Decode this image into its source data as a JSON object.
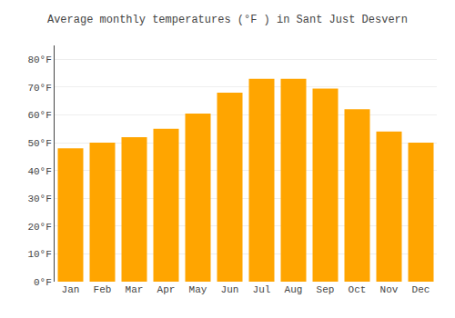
{
  "chart_data": {
    "type": "bar",
    "title": "Average monthly temperatures (°F ) in Sant Just Desvern",
    "categories": [
      "Jan",
      "Feb",
      "Mar",
      "Apr",
      "May",
      "Jun",
      "Jul",
      "Aug",
      "Sep",
      "Oct",
      "Nov",
      "Dec"
    ],
    "values": [
      48,
      50,
      52,
      55,
      60.5,
      68,
      73,
      73,
      69.5,
      62,
      54,
      50
    ],
    "color": "#FFA500",
    "ylim": [
      0,
      85
    ],
    "yticks": [
      {
        "value": 0,
        "label": "0°F"
      },
      {
        "value": 10,
        "label": "10°F"
      },
      {
        "value": 20,
        "label": "20°F"
      },
      {
        "value": 30,
        "label": "30°F"
      },
      {
        "value": 40,
        "label": "40°F"
      },
      {
        "value": 50,
        "label": "50°F"
      },
      {
        "value": 60,
        "label": "60°F"
      },
      {
        "value": 70,
        "label": "70°F"
      },
      {
        "value": 80,
        "label": "80°F"
      }
    ],
    "grid": true
  }
}
